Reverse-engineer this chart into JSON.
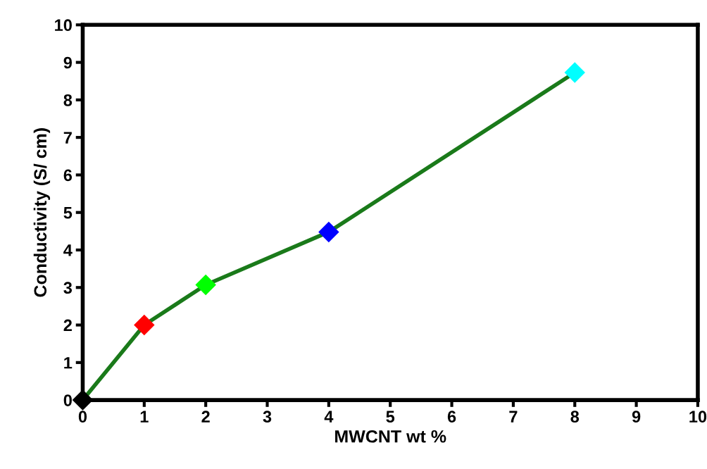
{
  "chart_data": {
    "type": "line",
    "xlabel": "MWCNT wt %",
    "ylabel": "Conductivity (S/ cm)",
    "x": [
      0,
      1,
      2,
      4,
      8
    ],
    "series": [
      {
        "color": "#1a7a1a",
        "colors": [
          "#000000",
          "#ff0000",
          "#00ff00",
          "#0000ff",
          "#00ffff"
        ],
        "values": [
          0,
          2.0,
          3.07,
          4.48,
          8.73
        ]
      }
    ],
    "xlim": [
      0,
      10
    ],
    "xticks": [
      0,
      1,
      2,
      3,
      4,
      5,
      6,
      7,
      8,
      9,
      10
    ],
    "ylim": [
      0,
      10
    ],
    "yticks": [
      0,
      1,
      2,
      3,
      4,
      5,
      6,
      7,
      8,
      9,
      10
    ],
    "marker": "diamond",
    "line_style": "solid",
    "grid": false,
    "legend": false
  }
}
